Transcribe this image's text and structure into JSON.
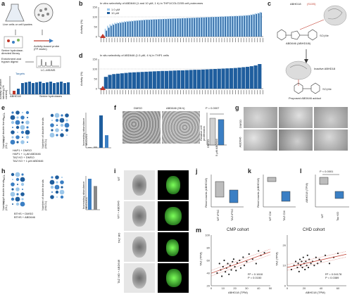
{
  "colors": {
    "blue_dark": "#1f5e9e",
    "blue_mid": "#3b7fc4",
    "blue_light": "#9cc7ea",
    "red": "#c0392b",
    "grey_bar": "#888888"
  },
  "panels": {
    "a": {
      "letter": "a",
      "step1": "Live cells or cell lysates",
      "step2": "Serine hydrolase-directed library",
      "step3": "Activity-based probe (FP-biotin)",
      "step4": "Enrichment and trypsin digest",
      "step5": "LC–MS/MS",
      "targets": "Targets",
      "ylabel": "Activity or probe labeling (% control)",
      "xlabel": "Serine hydrolases",
      "highlight": "ABHD18"
    },
    "b": {
      "letter": "b",
      "title": "In vitro selectivity of ABD646 (1 and 10 µM, 1 h) in THP1/COLO205 cell proteomes",
      "legend": [
        "1.0 µM",
        "10 µM"
      ],
      "ylabel": "Activity (%)",
      "yticks": [
        "150",
        "100",
        "50",
        "0"
      ]
    },
    "c": {
      "letter": "c",
      "enzyme": "ABHD18",
      "residue": "(S13S)",
      "compound": "ABD646 (ABHD18i)",
      "inactive": "Inactive ABHD18",
      "adduct": "Proposed ABD646 adduct"
    },
    "d": {
      "letter": "d",
      "title": "In situ selectivity of ABD646 (1.0 µM, 4 h) in THP1 cells",
      "ylabel": "Activity (%)",
      "yticks": [
        "150",
        "100",
        "50",
        "0"
      ]
    },
    "e": {
      "letter": "e",
      "ylabel1": "Number of double bonds (CL)",
      "ylabel2": "Number of double bonds (MLCL)",
      "ytop": "mCL",
      "ybottom": "nCL",
      "xcats": [
        "HAP1 + DMSO",
        "HAP1 + 1 µM ABD646",
        "TAZ KO + DMSO",
        "TAZ KO + 1 µM ABD646"
      ],
      "bar_ylabel": "Increasing abundance MLCL/CL"
    },
    "f": {
      "letter": "f",
      "left": "DMSO",
      "right": "ABD646 (96 h)",
      "pvalue": "P = 0.0007",
      "ylabel": "Relative cell proliferation",
      "xcats": [
        "DMSO",
        "5 µM ABD646"
      ]
    },
    "g": {
      "letter": "g",
      "rows": [
        "DMSO",
        "ABD646"
      ]
    },
    "h": {
      "letter": "h",
      "ylabel1": "Number of double bonds (CL)",
      "ylabel2": "Number of double bonds (MLCL)",
      "ytop": "mCL",
      "ybottom": "nCL",
      "xcats": [
        "BTHS + DMSO",
        "BTHS + ABD646"
      ],
      "bar_ylabel": "Increasing abundance MLCL/CL"
    },
    "i": {
      "letter": "i",
      "rows": [
        "WT",
        "WT + ABD646",
        "TAZ MO",
        "TAZ MO + ABD646"
      ]
    },
    "j": {
      "letter": "j",
      "ylabel": "Read counts (ABHD18)",
      "xcats": [
        "WT iPSC",
        "TAZ iPSC"
      ]
    },
    "k": {
      "letter": "k",
      "ylabel": "Read counts (ABHD18)",
      "xcats": [
        "WT CM",
        "TAZ CM"
      ]
    },
    "l": {
      "letter": "l",
      "pvalue": "P < 0.0001",
      "ylabel": "ABHD18 (TPM)",
      "xcats": [
        "WT",
        "Taz KO"
      ]
    },
    "m": {
      "letter": "m",
      "left_title": "CMP cohort",
      "right_title": "CHD cohort",
      "ylabel": "TAZ (TPM)",
      "xlabel": "ABHD18 (TPM)",
      "left_stats": [
        "R² = 0.1618",
        "P = 0.0150"
      ],
      "right_stats": [
        "R² = 0.04178",
        "P = 0.0389"
      ],
      "left_yticks": [
        "100",
        "80",
        "60",
        "40",
        "20"
      ],
      "left_xticks": [
        "0",
        "10",
        "20",
        "30",
        "40",
        "50"
      ],
      "right_yticks": [
        "20",
        "10",
        "0"
      ],
      "right_xticks": [
        "0",
        "20",
        "40",
        "60"
      ]
    }
  },
  "chart_data": [
    {
      "type": "bar",
      "id": "b",
      "title": "In vitro selectivity of ABD646 (1 and 10 µM, 1 h) in THP1/COLO205 cell proteomes",
      "ylabel": "Activity (%)",
      "ylim": [
        0,
        150
      ],
      "series": [
        {
          "name": "1.0 µM",
          "values": [
            2,
            4,
            40,
            55,
            62,
            66,
            70,
            72,
            74,
            76,
            78,
            79,
            80,
            81,
            82,
            83,
            84,
            85,
            86,
            87,
            87,
            88,
            88,
            89,
            89,
            90,
            90,
            91,
            91,
            92,
            92,
            93,
            93,
            94,
            94,
            95,
            95,
            96,
            96,
            97,
            97,
            98,
            98,
            99,
            99,
            100,
            100,
            101,
            101,
            102,
            102,
            103,
            103,
            104,
            104,
            105,
            105,
            106,
            106,
            107,
            108,
            109,
            110,
            112,
            115,
            118,
            120,
            125
          ]
        },
        {
          "name": "10 µM",
          "values": [
            1,
            2,
            30,
            45,
            55,
            60,
            65,
            68,
            70,
            72,
            74,
            76,
            77,
            78,
            80,
            81,
            82,
            83,
            84,
            85,
            85,
            86,
            87,
            87,
            88,
            88,
            89,
            89,
            90,
            90,
            91,
            91,
            92,
            92,
            93,
            93,
            94,
            94,
            95,
            95,
            96,
            96,
            97,
            97,
            98,
            98,
            99,
            99,
            100,
            100,
            101,
            101,
            102,
            102,
            103,
            103,
            104,
            104,
            105,
            105,
            106,
            107,
            108,
            110,
            112,
            115,
            118,
            122
          ]
        }
      ]
    },
    {
      "type": "bar",
      "id": "d",
      "title": "In situ selectivity of ABD646 (1.0 µM, 4 h) in THP1 cells",
      "ylabel": "Activity (%)",
      "ylim": [
        0,
        150
      ],
      "values": [
        3,
        60,
        70,
        74,
        76,
        78,
        80,
        82,
        83,
        84,
        85,
        86,
        87,
        88,
        89,
        90,
        90,
        91,
        92,
        93,
        93,
        94,
        95,
        96,
        96,
        97,
        98,
        99,
        100,
        101,
        102,
        103,
        104,
        105,
        107,
        109,
        111,
        114,
        118,
        125
      ]
    },
    {
      "type": "bar",
      "id": "e-bar",
      "ylabel": "Increasing abundance MLCL/CL",
      "categories": [
        "HAP1 + DMSO",
        "HAP1 + 1 µM ABD646",
        "TAZ KO + DMSO",
        "TAZ KO + 1 µM ABD646"
      ],
      "values": [
        0.02,
        0.03,
        0.9,
        0.35
      ]
    },
    {
      "type": "bar",
      "id": "f-bar",
      "ylabel": "Relative cell proliferation",
      "categories": [
        "DMSO",
        "5 µM ABD646"
      ],
      "values": [
        1.0,
        0.95
      ]
    },
    {
      "type": "bar",
      "id": "h-bar",
      "ylabel": "Increasing abundance MLCL/CL",
      "categories": [
        "BTHS + DMSO",
        "BTHS + ABD646"
      ],
      "values": [
        0.85,
        0.65
      ]
    },
    {
      "type": "scatter",
      "id": "m-left",
      "title": "CMP cohort",
      "xlabel": "ABHD18 (TPM)",
      "ylabel": "TAZ (TPM)",
      "xlim": [
        0,
        50
      ],
      "ylim": [
        20,
        100
      ],
      "x": [
        5,
        7,
        8,
        9,
        10,
        11,
        12,
        13,
        14,
        15,
        16,
        17,
        18,
        19,
        20,
        21,
        22,
        24,
        25,
        27,
        28,
        30,
        32,
        35,
        38,
        40,
        42,
        45
      ],
      "y": [
        40,
        55,
        45,
        35,
        50,
        60,
        42,
        48,
        55,
        38,
        52,
        45,
        58,
        62,
        50,
        44,
        56,
        60,
        48,
        65,
        52,
        58,
        70,
        62,
        55,
        75,
        68,
        72
      ]
    },
    {
      "type": "scatter",
      "id": "m-right",
      "title": "CHD cohort",
      "xlabel": "ABHD18 (TPM)",
      "ylabel": "TAZ (TPM)",
      "xlim": [
        0,
        70
      ],
      "ylim": [
        0,
        25
      ],
      "x": [
        5,
        8,
        10,
        12,
        13,
        14,
        15,
        16,
        17,
        18,
        19,
        20,
        21,
        22,
        23,
        24,
        25,
        26,
        28,
        30,
        32,
        34,
        36,
        38,
        40,
        45,
        50,
        55,
        60
      ],
      "y": [
        8,
        10,
        12,
        9,
        11,
        7,
        13,
        10,
        12,
        9,
        14,
        11,
        8,
        12,
        10,
        15,
        9,
        13,
        11,
        12,
        10,
        14,
        11,
        13,
        12,
        15,
        11,
        14,
        16
      ]
    }
  ]
}
